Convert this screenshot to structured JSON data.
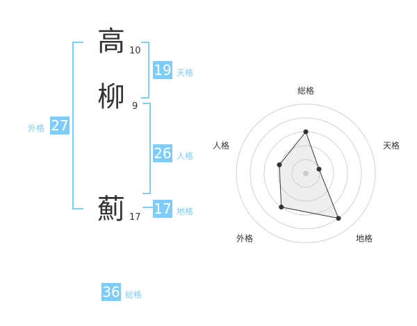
{
  "name": {
    "chars": [
      {
        "char": "高",
        "strokes": "10"
      },
      {
        "char": "柳",
        "strokes": "9"
      },
      {
        "char": "薊",
        "strokes": "17"
      }
    ]
  },
  "scores": {
    "tenkaku": {
      "value": "19",
      "label": "天格"
    },
    "jinkaku": {
      "value": "26",
      "label": "人格"
    },
    "chikaku": {
      "value": "17",
      "label": "地格"
    },
    "gaikaku": {
      "value": "27",
      "label": "外格"
    },
    "soukaku": {
      "value": "36",
      "label": "総格"
    }
  },
  "colors": {
    "accent": "#80ccf8",
    "text": "#333333"
  },
  "chart_data": {
    "type": "radar",
    "axes": [
      "総格",
      "天格",
      "地格",
      "外格",
      "人格"
    ],
    "values": [
      3,
      1,
      4,
      3,
      2
    ],
    "range": [
      0,
      5
    ],
    "rings": 5
  }
}
